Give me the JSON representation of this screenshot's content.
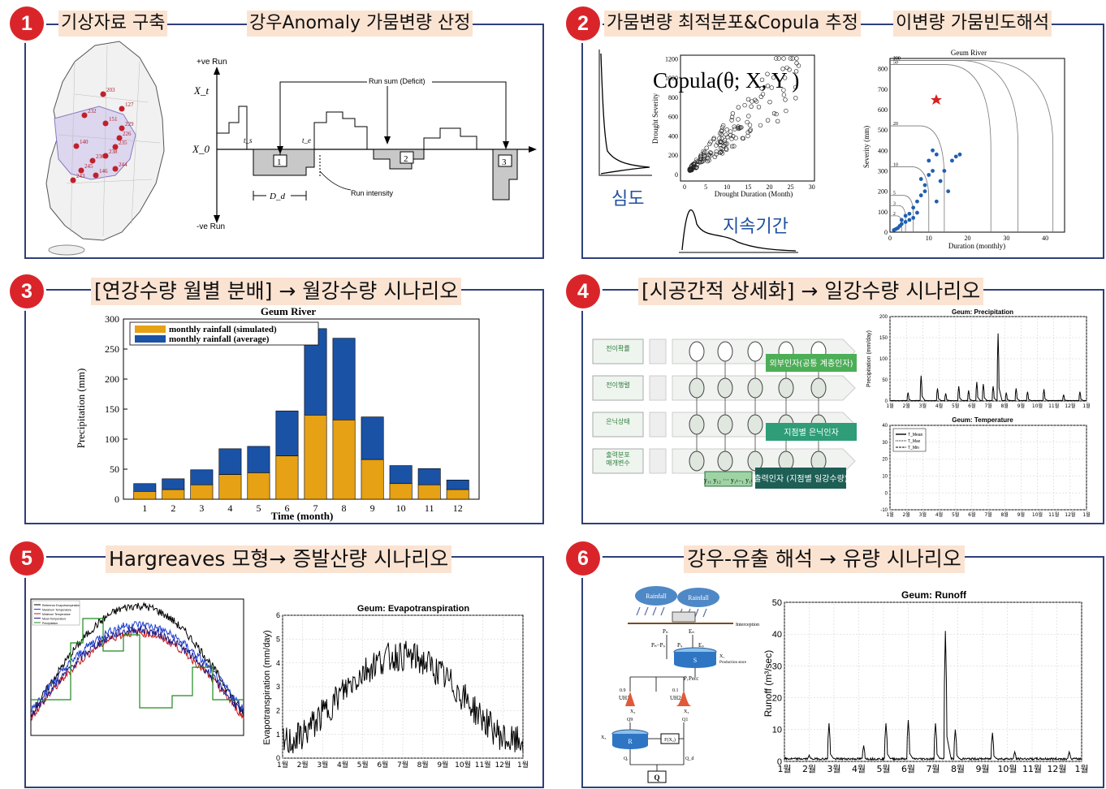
{
  "panels": [
    {
      "num": "1",
      "title_left": "기상자료 구축",
      "title_right": "강우Anomaly 가뭄변량 산정"
    },
    {
      "num": "2",
      "title_left": "가뭄변량 최적분포&Copula 추정",
      "title_right": "이변량 가뭄빈도해석"
    },
    {
      "num": "3",
      "title": "[연강수량 월별 분배] → 월강수량 시나리오"
    },
    {
      "num": "4",
      "title": "[시공간적 상세화] → 일강수량 시나리오"
    },
    {
      "num": "5",
      "title": "Hargreaves 모형→ 증발산량 시나리오"
    },
    {
      "num": "6",
      "title": "강우-유출 해석 → 유량 시나리오"
    }
  ],
  "p1": {
    "stations": [
      "203",
      "127",
      "232",
      "151",
      "229",
      "226",
      "140",
      "235",
      "238",
      "236",
      "245",
      "243",
      "146",
      "244"
    ],
    "run": {
      "pos": "+ve Run",
      "neg": "-ve Run",
      "xt": "X_t",
      "x0": "X_0",
      "runsum": "Run sum (Deficit)",
      "intensity": "Run intensity",
      "dd": "D_d",
      "ts": "t_s",
      "te": "t_e",
      "boxes": [
        "1",
        "2",
        "3"
      ]
    }
  },
  "p2": {
    "copula_label": "Copula(θ; X, Y )",
    "severity_kr": "심도",
    "duration_kr": "지속기간",
    "scatter": {
      "xlabel": "Drought Duration (Month)",
      "ylabel": "Drought Severity",
      "xticks": [
        "0",
        "5",
        "10",
        "15",
        "20",
        "25",
        "30"
      ],
      "yticks": [
        "0",
        "200",
        "400",
        "600",
        "800",
        "1000",
        "1200"
      ]
    },
    "freq": {
      "title": "Geum River",
      "xlabel": "Duration (monthly)",
      "ylabel": "Severity (mm)",
      "xticks": [
        "0",
        "10",
        "20",
        "30",
        "40"
      ],
      "yticks": [
        "0",
        "100",
        "200",
        "300",
        "400",
        "500",
        "600",
        "700",
        "800"
      ],
      "contours": [
        "2",
        "3",
        "5",
        "10",
        "20",
        "50",
        "100",
        "200"
      ]
    }
  },
  "chart_data": [
    {
      "type": "bar",
      "title": "Geum River",
      "xlabel": "Time (month)",
      "ylabel": "Precipitation (mm)",
      "ylim": [
        0,
        300
      ],
      "categories": [
        "1",
        "2",
        "3",
        "4",
        "5",
        "6",
        "7",
        "8",
        "9",
        "10",
        "11",
        "12"
      ],
      "series": [
        {
          "name": "monthly rainfall (simulated)",
          "color": "#e6a114",
          "values": [
            13,
            16,
            24,
            41,
            44,
            72,
            140,
            132,
            66,
            26,
            24,
            16
          ]
        },
        {
          "name": "monthly rainfall (average)",
          "color": "#1a52a6",
          "values": [
            26,
            34,
            49,
            84,
            88,
            147,
            284,
            268,
            137,
            56,
            51,
            32
          ]
        }
      ],
      "yticks": [
        "0",
        "50",
        "100",
        "150",
        "200",
        "250",
        "300"
      ]
    },
    {
      "type": "line",
      "title": "Geum: Precipitation",
      "ylabel": "Precipitation (mm/day)",
      "ylim": [
        0,
        200
      ],
      "yticks": [
        "0",
        "50",
        "100",
        "150",
        "200"
      ],
      "xticks": [
        "1월",
        "2월",
        "3월",
        "4월",
        "5월",
        "6월",
        "7월",
        "8월",
        "9월",
        "10월",
        "11월",
        "12월",
        "1월"
      ],
      "peaks": [
        [
          2.1,
          20
        ],
        [
          2.9,
          60
        ],
        [
          3.9,
          30
        ],
        [
          4.4,
          18
        ],
        [
          5.2,
          35
        ],
        [
          5.8,
          25
        ],
        [
          6.3,
          45
        ],
        [
          6.7,
          40
        ],
        [
          7.3,
          35
        ],
        [
          7.6,
          160
        ],
        [
          8.1,
          20
        ],
        [
          8.7,
          30
        ],
        [
          9.4,
          22
        ],
        [
          10.4,
          28
        ],
        [
          11.6,
          15
        ],
        [
          12.6,
          22
        ]
      ]
    },
    {
      "type": "line",
      "title": "Geum: Temperature",
      "ylim": [
        -10,
        40
      ],
      "yticks": [
        "-10",
        "0",
        "10",
        "20",
        "30",
        "40"
      ],
      "xticks": [
        "1월",
        "2월",
        "3월",
        "4월",
        "5월",
        "6월",
        "7월",
        "8월",
        "9월",
        "10월",
        "11월",
        "12월",
        "1월"
      ],
      "legend": [
        "T_Mean",
        "T_Max",
        "T_Min"
      ]
    },
    {
      "type": "line",
      "title": "Geum: Evapotranspiration",
      "ylabel": "Evapotranspiration (mm/day)",
      "ylim": [
        0,
        6
      ],
      "yticks": [
        "0",
        "1",
        "2",
        "3",
        "4",
        "5",
        "6"
      ],
      "xticks": [
        "1월",
        "2월",
        "3월",
        "4월",
        "5월",
        "6월",
        "7월",
        "8월",
        "9월",
        "10월",
        "11월",
        "12월",
        "1월"
      ]
    },
    {
      "type": "line",
      "title": "Geum: Runoff",
      "ylabel": "Runoff (m³/sec)",
      "ylim": [
        0,
        50
      ],
      "yticks": [
        "0",
        "10",
        "20",
        "30",
        "40",
        "50"
      ],
      "xticks": [
        "1월",
        "2월",
        "3월",
        "4월",
        "5월",
        "6월",
        "7월",
        "8월",
        "9월",
        "10월",
        "11월",
        "12월",
        "1월"
      ],
      "peaks": [
        [
          2.0,
          2
        ],
        [
          2.8,
          12
        ],
        [
          4.2,
          5
        ],
        [
          5.1,
          12
        ],
        [
          6.0,
          13
        ],
        [
          7.1,
          12
        ],
        [
          7.5,
          41
        ],
        [
          7.9,
          10
        ],
        [
          9.4,
          9
        ],
        [
          10.3,
          3
        ],
        [
          12.5,
          3
        ]
      ]
    }
  ],
  "p4": {
    "rows": [
      "전이확률",
      "전이행렬",
      "은닉상태",
      "출력분포 매개변수"
    ],
    "band1": "외부인자(공통 계층인자)",
    "band2": "지점별 은닉인자",
    "band3": "출력인자 (지점별 일강수량)",
    "obs": "y₁₁  y₁₂  ···  y₁ₜ₋₁ y₁ₜ"
  },
  "p5": {
    "legend": [
      "Reference Evapotranspiration",
      "Maximum Temperature",
      "Minimum Temperature",
      "Mean Temperature",
      "Precipitation"
    ]
  },
  "p6": {
    "rain1": "Rainfall",
    "rain2": "Rainfall",
    "interception": "Interception",
    "pn": "Pₙ",
    "en": "Eₙ",
    "es": "Eₛ",
    "ps": "Pₛ",
    "pnps": "Pₙ−Pₛ",
    "s": "S",
    "x1": "X₁",
    "prod": "Production store",
    "perc": "Perc",
    "pr": "Pᵣ",
    "split1": "0.9",
    "split2": "0.1",
    "uh1": "UH1",
    "uh2": "UH2",
    "x4": "X₄",
    "q9": "Q9",
    "q1": "Q1",
    "r": "R",
    "x3": "X₃",
    "fx2": "F(X₂)",
    "qr": "Qᵣ",
    "qd": "Q_d",
    "q": "Q"
  }
}
